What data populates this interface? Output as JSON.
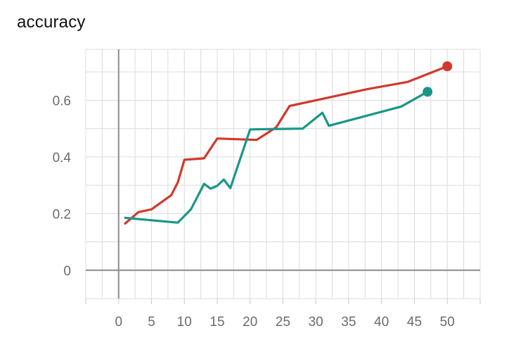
{
  "chart_data": {
    "type": "line",
    "title": "accuracy",
    "xlabel": "",
    "ylabel": "",
    "xlim": [
      -5,
      55
    ],
    "ylim": [
      -0.1,
      0.78
    ],
    "x_ticks": [
      0,
      5,
      10,
      15,
      20,
      25,
      30,
      35,
      40,
      45,
      50
    ],
    "y_ticks": [
      0,
      0.2,
      0.4,
      0.6
    ],
    "y_tick_labels": [
      "0",
      "0.2",
      "0.4",
      "0.6"
    ],
    "grid": true,
    "series": [
      {
        "color": "#d0392b",
        "x": [
          1,
          3,
          5,
          8,
          9,
          10,
          13,
          15,
          21,
          24,
          26,
          30,
          38,
          44,
          50
        ],
        "y": [
          0.165,
          0.205,
          0.215,
          0.265,
          0.31,
          0.39,
          0.395,
          0.465,
          0.46,
          0.505,
          0.58,
          0.6,
          0.64,
          0.665,
          0.72
        ]
      },
      {
        "color": "#1a9688",
        "x": [
          1,
          9,
          11,
          13,
          14,
          15,
          16,
          17,
          20,
          28,
          31,
          32,
          43,
          47
        ],
        "y": [
          0.185,
          0.168,
          0.215,
          0.305,
          0.288,
          0.298,
          0.32,
          0.29,
          0.497,
          0.5,
          0.556,
          0.51,
          0.578,
          0.63
        ]
      }
    ]
  }
}
